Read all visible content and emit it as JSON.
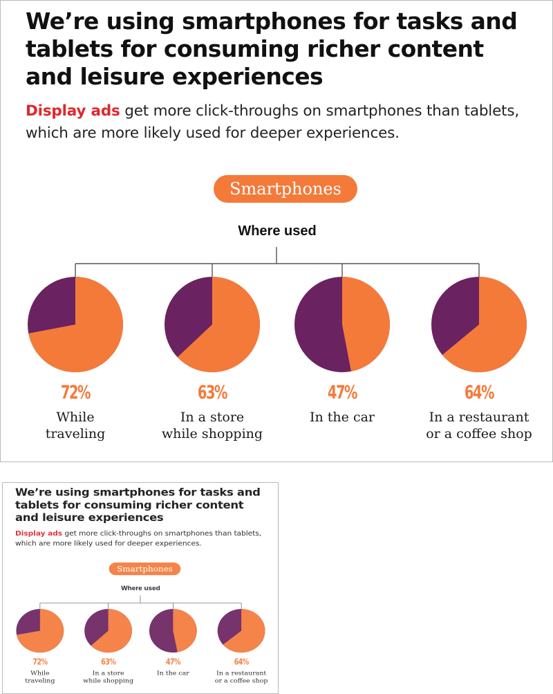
{
  "headline": "We’re using smartphones for tasks and tablets for consuming richer content and leisure experiences",
  "subline": {
    "highlight": "Display ads",
    "rest": " get more click-throughs on smartphones than tablets, which are more likely used for deeper experiences."
  },
  "device_pill": "Smartphones",
  "where_label": "Where used",
  "colors": {
    "orange": "#f47a3a",
    "purple": "#6b2260",
    "highlight": "#e0262d"
  },
  "chart_data": {
    "type": "pie",
    "title": "Where used",
    "series": [
      {
        "label_lines": [
          "While",
          "traveling"
        ],
        "percent_label": "72%",
        "value": 72
      },
      {
        "label_lines": [
          "In a store",
          "while shopping"
        ],
        "percent_label": "63%",
        "value": 63
      },
      {
        "label_lines": [
          "In the car"
        ],
        "percent_label": "47%",
        "value": 47
      },
      {
        "label_lines": [
          "In a restaurant",
          "or a coffee shop"
        ],
        "percent_label": "64%",
        "value": 64
      }
    ]
  }
}
